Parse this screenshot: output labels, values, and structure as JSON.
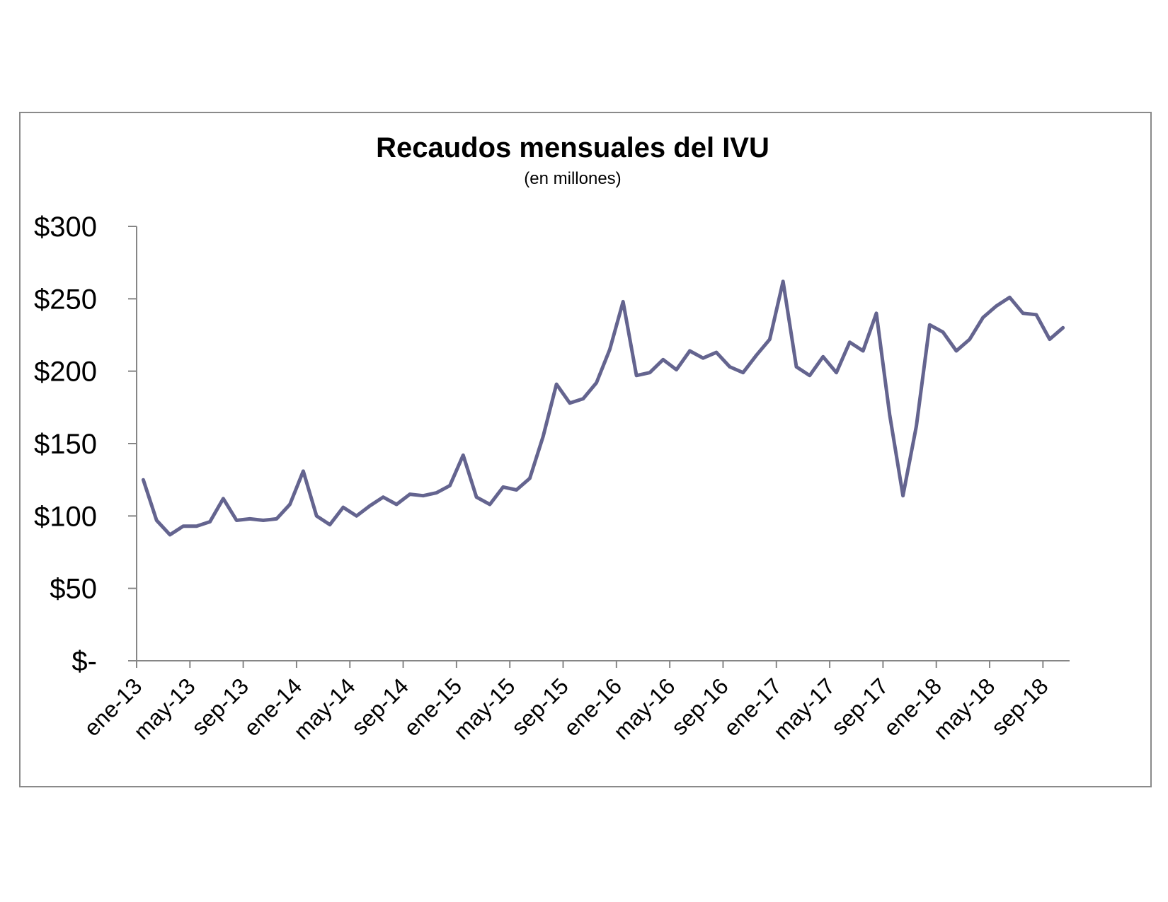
{
  "chart_data": {
    "type": "line",
    "title": "Recaudos mensuales del IVU",
    "subtitle": "(en millones)",
    "xlabel": "",
    "ylabel": "",
    "ylim": [
      0,
      300
    ],
    "yticks": [
      0,
      50,
      100,
      150,
      200,
      250,
      300
    ],
    "ytick_labels": [
      "$-",
      "$50",
      "$100",
      "$150",
      "$200",
      "$250",
      "$300"
    ],
    "xtick_labels": [
      "ene-13",
      "may-13",
      "sep-13",
      "ene-14",
      "may-14",
      "sep-14",
      "ene-15",
      "may-15",
      "sep-15",
      "ene-16",
      "may-16",
      "sep-16",
      "ene-17",
      "may-17",
      "sep-17",
      "ene-18",
      "may-18",
      "sep-18"
    ],
    "xtick_step_months": 4,
    "grid": false,
    "line_color": "#64648f",
    "series": [
      {
        "x_start": "ene-13",
        "values": [
          125,
          97,
          87,
          93,
          93,
          96,
          112,
          97,
          98,
          97,
          98,
          108,
          131,
          100,
          94,
          106,
          100,
          107,
          113,
          108,
          115,
          114,
          116,
          121,
          142,
          113,
          108,
          120,
          118,
          126,
          155,
          191,
          178,
          181,
          192,
          215,
          248,
          197,
          199,
          208,
          201,
          214,
          209,
          213,
          203,
          199,
          211,
          222,
          262,
          203,
          197,
          210,
          199,
          220,
          214,
          240,
          170,
          114,
          162,
          232,
          227,
          214,
          222,
          237,
          245,
          251,
          240,
          239,
          222,
          230
        ]
      }
    ]
  }
}
